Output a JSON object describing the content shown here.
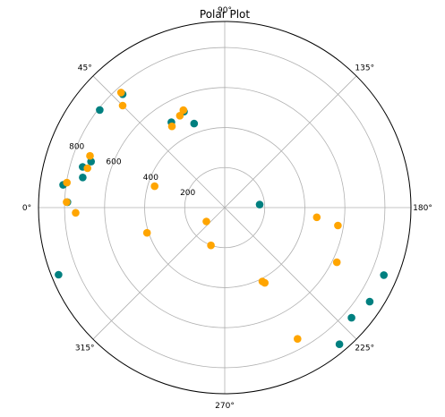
{
  "chart_data": {
    "type": "scatter",
    "projection": "polar",
    "title": "Polar Plot",
    "theta_direction": "clockwise",
    "theta_zero_location": "left",
    "theta_ticks": [
      {
        "deg": 0,
        "label": "0°"
      },
      {
        "deg": 45,
        "label": "45°"
      },
      {
        "deg": 90,
        "label": "90°"
      },
      {
        "deg": 135,
        "label": "135°"
      },
      {
        "deg": 180,
        "label": "180°"
      },
      {
        "deg": 225,
        "label": "225°"
      },
      {
        "deg": 270,
        "label": "270°"
      },
      {
        "deg": 315,
        "label": "315°"
      }
    ],
    "r_ticks": [
      {
        "value": 200,
        "label": "200"
      },
      {
        "value": 400,
        "label": "400"
      },
      {
        "value": 600,
        "label": "600"
      },
      {
        "value": 800,
        "label": "800"
      }
    ],
    "rlim": [
      0,
      930
    ],
    "grid": true,
    "legend": "none",
    "series": [
      {
        "color": "#008080",
        "points": [
          {
            "theta": 175,
            "r": 175
          },
          {
            "theta": 8,
            "r": 815
          },
          {
            "theta": 12,
            "r": 725
          },
          {
            "theta": 19,
            "r": 706
          },
          {
            "theta": 16,
            "r": 738
          },
          {
            "theta": 38,
            "r": 792
          },
          {
            "theta": 48,
            "r": 762
          },
          {
            "theta": 67,
            "r": 521
          },
          {
            "theta": 58,
            "r": 503
          },
          {
            "theta": 70,
            "r": 447
          },
          {
            "theta": 338,
            "r": 895
          },
          {
            "theta": 203,
            "r": 863
          },
          {
            "theta": 213,
            "r": 863
          },
          {
            "theta": 221,
            "r": 839
          },
          {
            "theta": 230,
            "r": 891
          },
          {
            "theta": 2,
            "r": 786
          }
        ]
      },
      {
        "color": "#FFA500",
        "points": [
          {
            "theta": 2,
            "r": 790
          },
          {
            "theta": 358,
            "r": 745
          },
          {
            "theta": 9,
            "r": 798
          },
          {
            "theta": 16,
            "r": 713
          },
          {
            "theta": 21,
            "r": 721
          },
          {
            "theta": 45,
            "r": 721
          },
          {
            "theta": 48,
            "r": 774
          },
          {
            "theta": 57,
            "r": 484
          },
          {
            "theta": 64,
            "r": 511
          },
          {
            "theta": 67,
            "r": 529
          },
          {
            "theta": 17,
            "r": 366
          },
          {
            "theta": 342,
            "r": 408
          },
          {
            "theta": 323,
            "r": 115
          },
          {
            "theta": 290,
            "r": 201
          },
          {
            "theta": 242,
            "r": 426
          },
          {
            "theta": 243,
            "r": 414
          },
          {
            "theta": 206,
            "r": 623
          },
          {
            "theta": 186,
            "r": 462
          },
          {
            "theta": 189,
            "r": 572
          },
          {
            "theta": 241,
            "r": 750
          }
        ]
      }
    ]
  }
}
